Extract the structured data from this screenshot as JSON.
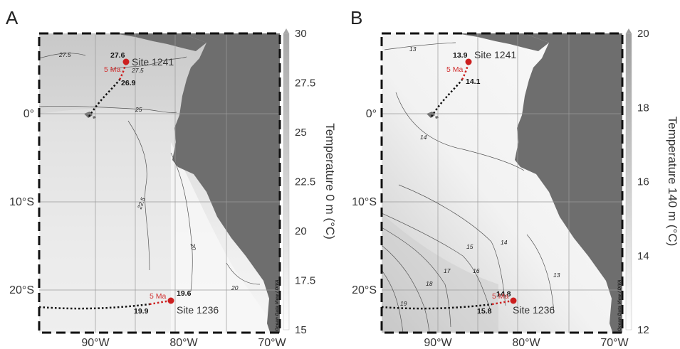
{
  "panels": [
    {
      "letter": "A",
      "colorbar": {
        "title": "Temperature 0 m (°C)",
        "ticks": [
          "30",
          "27.5",
          "25",
          "22.5",
          "20",
          "17.5",
          "15"
        ],
        "min": 15,
        "max": 30
      },
      "sites": [
        {
          "name": "Site 1241",
          "value_top": "27.6",
          "value_bottom": "26.9",
          "age": "5 Ma"
        },
        {
          "name": "Site 1236",
          "value_top": "19.6",
          "value_bottom": "19.9",
          "age": "5 Ma"
        }
      ],
      "isolines": [
        "27.5",
        "27.5",
        "25",
        "22.5",
        "20",
        "20"
      ],
      "credit": "Ocean Data View / DIVA"
    },
    {
      "letter": "B",
      "colorbar": {
        "title": "Temperature 140 m (°C)",
        "ticks": [
          "20",
          "18",
          "16",
          "14",
          "12"
        ],
        "min": 12,
        "max": 20
      },
      "sites": [
        {
          "name": "Site 1241",
          "value_top": "13.9",
          "value_bottom": "14.1",
          "age": "5 Ma"
        },
        {
          "name": "Site 1236",
          "value_top": "14.8",
          "value_bottom": "15.8",
          "age": "5 Ma"
        }
      ],
      "isolines": [
        "13",
        "14",
        "15",
        "14",
        "17",
        "16",
        "18",
        "19",
        "13"
      ],
      "credit": "Ocean Data View / DIVA"
    }
  ],
  "axes": {
    "lat_ticks": [
      "0°",
      "10°S",
      "20°S"
    ],
    "lon_ticks": [
      "90°W",
      "80°W",
      "70°W"
    ]
  },
  "colors": {
    "land": "#6e6e6e",
    "site_marker": "#cc1f1f",
    "track_recent": "#cc1f1f",
    "track_past": "#111111"
  }
}
